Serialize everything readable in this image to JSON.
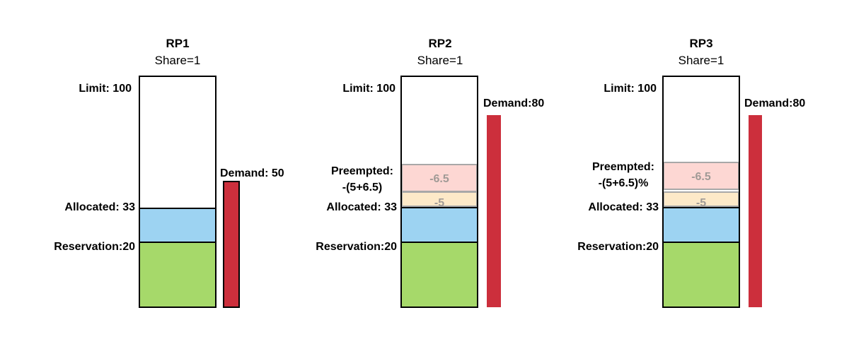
{
  "panels": [
    {
      "title": "RP1",
      "share": "Share=1",
      "limit_label": "Limit: 100",
      "demand_label": "Demand: 50",
      "allocated_label": "Allocated: 33",
      "reservation_label": "Reservation:20",
      "preempted_label_1": "",
      "preempted_label_2": "",
      "preempt_value_1": "",
      "preempt_value_2": "",
      "limit": 100,
      "demand": 50,
      "allocated": 33,
      "reservation": 20
    },
    {
      "title": "RP2",
      "share": "Share=1",
      "limit_label": "Limit: 100",
      "demand_label": "Demand:80",
      "allocated_label": "Allocated: 33",
      "reservation_label": "Reservation:20",
      "preempted_label_1": "Preempted:",
      "preempted_label_2": "-(5+6.5)",
      "preempt_value_1": "-6.5",
      "preempt_value_2": "-5",
      "limit": 100,
      "demand": 80,
      "allocated": 33,
      "reservation": 20,
      "preempt_1": 6.5,
      "preempt_2": 5
    },
    {
      "title": "RP3",
      "share": "Share=1",
      "limit_label": "Limit: 100",
      "demand_label": "Demand:80",
      "allocated_label": "Allocated: 33",
      "reservation_label": "Reservation:20",
      "preempted_label_1": "Preempted:",
      "preempted_label_2": "-(5+6.5)%",
      "preempt_value_1": "-6.5",
      "preempt_value_2": "-5",
      "limit": 100,
      "demand": 80,
      "allocated": 33,
      "reservation": 20,
      "preempt_1": 6.5,
      "preempt_2": 5
    }
  ],
  "colors": {
    "reservation": "#a6d96a",
    "allocated": "#9dd3f2",
    "preempt_1": "#fdd7d3",
    "preempt_2": "#fde9c8",
    "demand": "#cc2f3c",
    "outline": "#000000"
  }
}
